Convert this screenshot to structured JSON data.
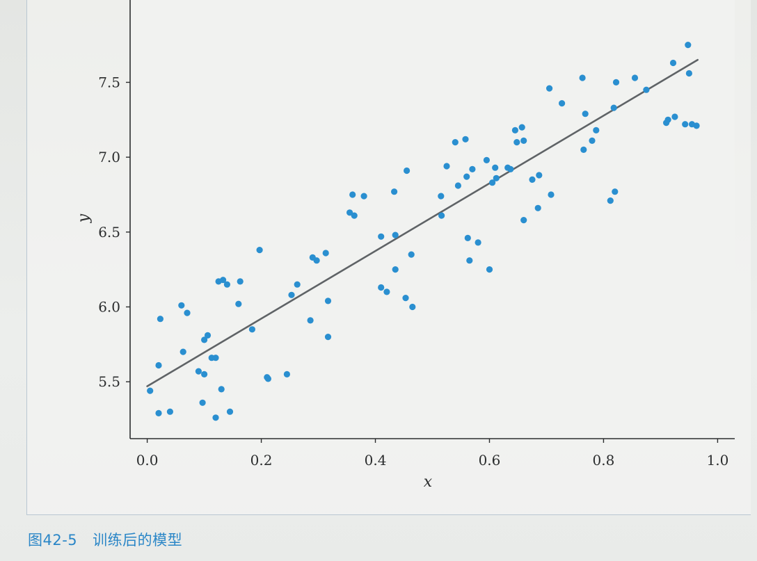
{
  "caption": {
    "figure_number": "图42-5",
    "text": "训练后的模型"
  },
  "colors": {
    "points": "#2a8fd0",
    "line": "#5f6366",
    "axes": "#2b2d2e",
    "caption": "#2a86c7"
  },
  "chart_data": {
    "type": "scatter",
    "title": "",
    "xlabel": "x",
    "ylabel": "y",
    "xlim": [
      -0.03,
      1.03
    ],
    "ylim": [
      5.12,
      8.05
    ],
    "xticks": [
      0.0,
      0.2,
      0.4,
      0.6,
      0.8,
      1.0
    ],
    "xtick_labels": [
      "0.0",
      "0.2",
      "0.4",
      "0.6",
      "0.8",
      "1.0"
    ],
    "yticks": [
      5.5,
      6.0,
      6.5,
      7.0,
      7.5
    ],
    "ytick_labels": [
      "5.5",
      "6.0",
      "6.5",
      "7.0",
      "7.5"
    ],
    "grid": false,
    "legend": "none",
    "series": [
      {
        "kind": "scatter",
        "points": [
          [
            0.005,
            5.44
          ],
          [
            0.02,
            5.29
          ],
          [
            0.04,
            5.3
          ],
          [
            0.02,
            5.61
          ],
          [
            0.023,
            5.92
          ],
          [
            0.06,
            6.01
          ],
          [
            0.07,
            5.96
          ],
          [
            0.063,
            5.7
          ],
          [
            0.09,
            5.57
          ],
          [
            0.1,
            5.78
          ],
          [
            0.106,
            5.81
          ],
          [
            0.1,
            5.55
          ],
          [
            0.097,
            5.36
          ],
          [
            0.113,
            5.66
          ],
          [
            0.12,
            5.66
          ],
          [
            0.12,
            5.26
          ],
          [
            0.125,
            6.17
          ],
          [
            0.133,
            6.18
          ],
          [
            0.14,
            6.15
          ],
          [
            0.13,
            5.45
          ],
          [
            0.145,
            5.3
          ],
          [
            0.16,
            6.02
          ],
          [
            0.163,
            6.17
          ],
          [
            0.184,
            5.85
          ],
          [
            0.197,
            6.38
          ],
          [
            0.21,
            5.53
          ],
          [
            0.212,
            5.52
          ],
          [
            0.245,
            5.55
          ],
          [
            0.253,
            6.08
          ],
          [
            0.263,
            6.15
          ],
          [
            0.286,
            5.91
          ],
          [
            0.29,
            6.33
          ],
          [
            0.297,
            6.31
          ],
          [
            0.313,
            6.36
          ],
          [
            0.317,
            6.04
          ],
          [
            0.317,
            5.8
          ],
          [
            0.355,
            6.63
          ],
          [
            0.36,
            6.75
          ],
          [
            0.363,
            6.61
          ],
          [
            0.38,
            6.74
          ],
          [
            0.41,
            6.47
          ],
          [
            0.41,
            6.13
          ],
          [
            0.42,
            6.1
          ],
          [
            0.433,
            6.77
          ],
          [
            0.435,
            6.48
          ],
          [
            0.435,
            6.25
          ],
          [
            0.453,
            6.06
          ],
          [
            0.455,
            6.91
          ],
          [
            0.463,
            6.35
          ],
          [
            0.465,
            6.0
          ],
          [
            0.515,
            6.74
          ],
          [
            0.516,
            6.61
          ],
          [
            0.525,
            6.94
          ],
          [
            0.54,
            7.1
          ],
          [
            0.545,
            6.81
          ],
          [
            0.558,
            7.12
          ],
          [
            0.56,
            6.87
          ],
          [
            0.562,
            6.46
          ],
          [
            0.565,
            6.31
          ],
          [
            0.57,
            6.92
          ],
          [
            0.58,
            6.43
          ],
          [
            0.595,
            6.98
          ],
          [
            0.6,
            6.25
          ],
          [
            0.605,
            6.83
          ],
          [
            0.61,
            6.93
          ],
          [
            0.612,
            6.86
          ],
          [
            0.632,
            6.93
          ],
          [
            0.637,
            6.92
          ],
          [
            0.645,
            7.18
          ],
          [
            0.648,
            7.1
          ],
          [
            0.657,
            7.2
          ],
          [
            0.66,
            6.58
          ],
          [
            0.66,
            7.11
          ],
          [
            0.675,
            6.85
          ],
          [
            0.685,
            6.66
          ],
          [
            0.687,
            6.88
          ],
          [
            0.705,
            7.46
          ],
          [
            0.708,
            6.75
          ],
          [
            0.727,
            7.36
          ],
          [
            0.763,
            7.53
          ],
          [
            0.765,
            7.05
          ],
          [
            0.768,
            7.29
          ],
          [
            0.78,
            7.11
          ],
          [
            0.787,
            7.18
          ],
          [
            0.812,
            6.71
          ],
          [
            0.818,
            7.33
          ],
          [
            0.82,
            6.77
          ],
          [
            0.822,
            7.5
          ],
          [
            0.855,
            7.53
          ],
          [
            0.875,
            7.45
          ],
          [
            0.91,
            7.23
          ],
          [
            0.913,
            7.25
          ],
          [
            0.922,
            7.63
          ],
          [
            0.925,
            7.27
          ],
          [
            0.943,
            7.22
          ],
          [
            0.948,
            7.75
          ],
          [
            0.95,
            7.56
          ],
          [
            0.955,
            7.22
          ],
          [
            0.963,
            7.21
          ]
        ]
      },
      {
        "kind": "line",
        "points": [
          [
            0.0,
            5.47
          ],
          [
            0.965,
            7.65
          ]
        ]
      }
    ]
  }
}
